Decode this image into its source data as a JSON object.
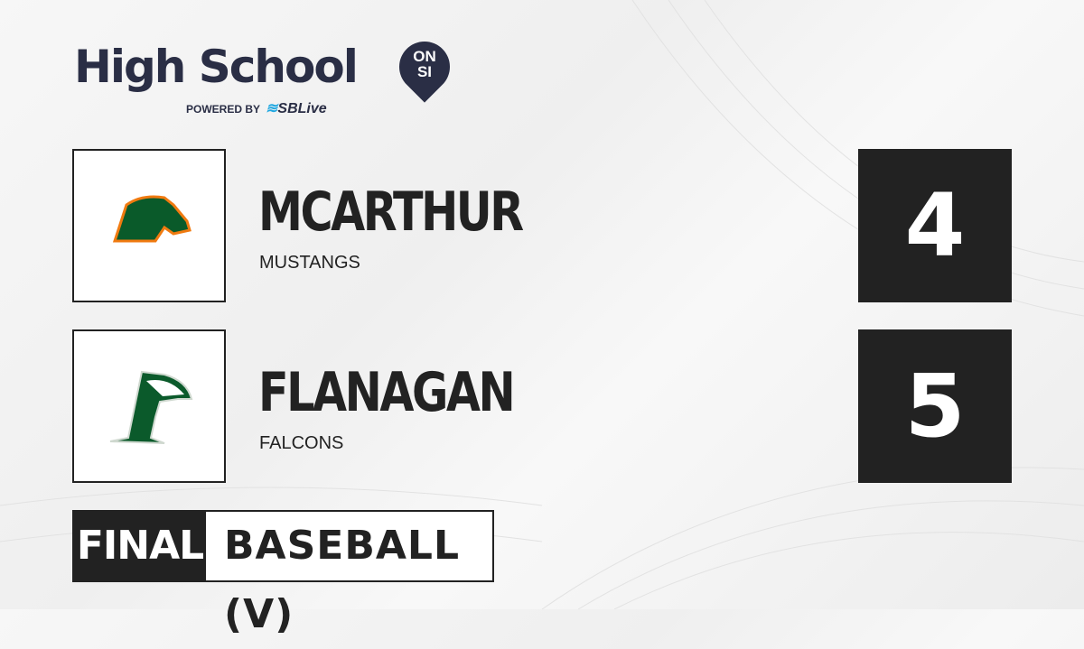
{
  "brand": {
    "title": "High School",
    "badge_top": "ON",
    "badge_bottom": "SI",
    "powered_by": "POWERED BY",
    "partner": "SBLive"
  },
  "teams": [
    {
      "name": "MCARTHUR",
      "mascot": "MUSTANGS",
      "score": "4",
      "logo": "mustang-logo",
      "colors": [
        "#0a5a2a",
        "#f07a10"
      ]
    },
    {
      "name": "FLANAGAN",
      "mascot": "FALCONS",
      "score": "5",
      "logo": "falcon-logo",
      "colors": [
        "#0b5a2b",
        "#ffffff"
      ]
    }
  ],
  "status": {
    "label": "FINAL",
    "sport": "BASEBALL (V)"
  }
}
